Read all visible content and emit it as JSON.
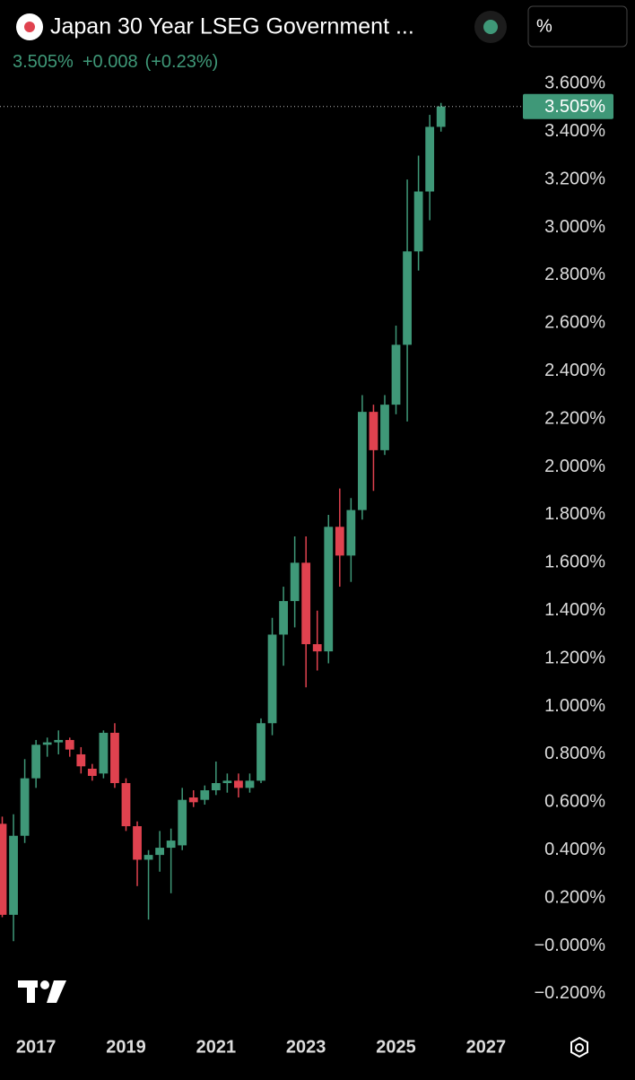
{
  "header": {
    "title": "Japan 30 Year LSEG Government ...",
    "price": "3.505%",
    "change": "+0.008",
    "change_pct": "(+0.23%)",
    "unit_button": "%"
  },
  "chart_data": {
    "type": "candlestick",
    "x": [
      2016.25,
      2016.5,
      2016.75,
      2017.0,
      2017.25,
      2017.5,
      2017.75,
      2018.0,
      2018.25,
      2018.5,
      2018.75,
      2019.0,
      2019.25,
      2019.5,
      2019.75,
      2020.0,
      2020.25,
      2020.5,
      2020.75,
      2021.0,
      2021.25,
      2021.5,
      2021.75,
      2022.0,
      2022.25,
      2022.5,
      2022.75,
      2023.0,
      2023.25,
      2023.5,
      2023.75,
      2024.0,
      2024.25,
      2024.5,
      2024.75,
      2025.0,
      2025.25,
      2025.5,
      2025.75,
      2026.0
    ],
    "open": [
      0.51,
      0.13,
      0.46,
      0.7,
      0.84,
      0.85,
      0.86,
      0.8,
      0.74,
      0.72,
      0.89,
      0.68,
      0.5,
      0.36,
      0.38,
      0.41,
      0.42,
      0.62,
      0.61,
      0.65,
      0.68,
      0.69,
      0.66,
      0.69,
      0.93,
      1.3,
      1.44,
      1.6,
      1.26,
      1.23,
      1.75,
      1.63,
      1.82,
      2.23,
      2.07,
      2.26,
      2.51,
      2.9,
      3.15,
      3.42
    ],
    "high": [
      0.54,
      0.55,
      0.78,
      0.86,
      0.87,
      0.9,
      0.87,
      0.83,
      0.76,
      0.9,
      0.93,
      0.7,
      0.52,
      0.4,
      0.48,
      0.49,
      0.66,
      0.65,
      0.67,
      0.77,
      0.72,
      0.72,
      0.72,
      0.95,
      1.37,
      1.5,
      1.71,
      1.71,
      1.4,
      1.8,
      1.91,
      1.87,
      2.3,
      2.26,
      2.3,
      2.59,
      3.2,
      3.3,
      3.47,
      3.52
    ],
    "low": [
      0.12,
      0.02,
      0.43,
      0.66,
      0.79,
      0.8,
      0.79,
      0.72,
      0.69,
      0.7,
      0.66,
      0.48,
      0.25,
      0.11,
      0.31,
      0.22,
      0.4,
      0.58,
      0.59,
      0.63,
      0.64,
      0.62,
      0.64,
      0.68,
      0.88,
      1.17,
      1.33,
      1.08,
      1.15,
      1.18,
      1.5,
      1.52,
      1.78,
      1.9,
      2.05,
      2.22,
      2.19,
      2.82,
      3.03,
      3.4
    ],
    "close": [
      0.13,
      0.46,
      0.7,
      0.84,
      0.85,
      0.86,
      0.82,
      0.75,
      0.71,
      0.89,
      0.68,
      0.5,
      0.36,
      0.38,
      0.41,
      0.44,
      0.61,
      0.6,
      0.65,
      0.68,
      0.69,
      0.66,
      0.69,
      0.93,
      1.3,
      1.44,
      1.6,
      1.26,
      1.23,
      1.75,
      1.63,
      1.82,
      2.23,
      2.07,
      2.26,
      2.51,
      2.9,
      3.15,
      3.42,
      3.505
    ],
    "up_color": "#3f9878",
    "down_color": "#e0424f",
    "last_price": {
      "value": 3.505,
      "label": "3.505%"
    },
    "xlim": [
      2016.2,
      2027.76
    ],
    "xticks": [
      2017,
      2019,
      2021,
      2023,
      2025,
      2027
    ],
    "ylim": [
      -0.32,
      3.65
    ],
    "yticks": [
      {
        "value": -0.2,
        "label": "−0.200%"
      },
      {
        "value": 0,
        "label": "−0.000%"
      },
      {
        "value": 0.2,
        "label": "0.200%"
      },
      {
        "value": 0.4,
        "label": "0.400%"
      },
      {
        "value": 0.6,
        "label": "0.600%"
      },
      {
        "value": 0.8,
        "label": "0.800%"
      },
      {
        "value": 1.0,
        "label": "1.000%"
      },
      {
        "value": 1.2,
        "label": "1.200%"
      },
      {
        "value": 1.4,
        "label": "1.400%"
      },
      {
        "value": 1.6,
        "label": "1.600%"
      },
      {
        "value": 1.8,
        "label": "1.800%"
      },
      {
        "value": 2.0,
        "label": "2.000%"
      },
      {
        "value": 2.2,
        "label": "2.200%"
      },
      {
        "value": 2.4,
        "label": "2.400%"
      },
      {
        "value": 2.6,
        "label": "2.600%"
      },
      {
        "value": 2.8,
        "label": "2.800%"
      },
      {
        "value": 3.0,
        "label": "3.000%"
      },
      {
        "value": 3.2,
        "label": "3.200%"
      },
      {
        "value": 3.4,
        "label": "3.400%"
      },
      {
        "value": 3.6,
        "label": "3.600%"
      }
    ]
  }
}
